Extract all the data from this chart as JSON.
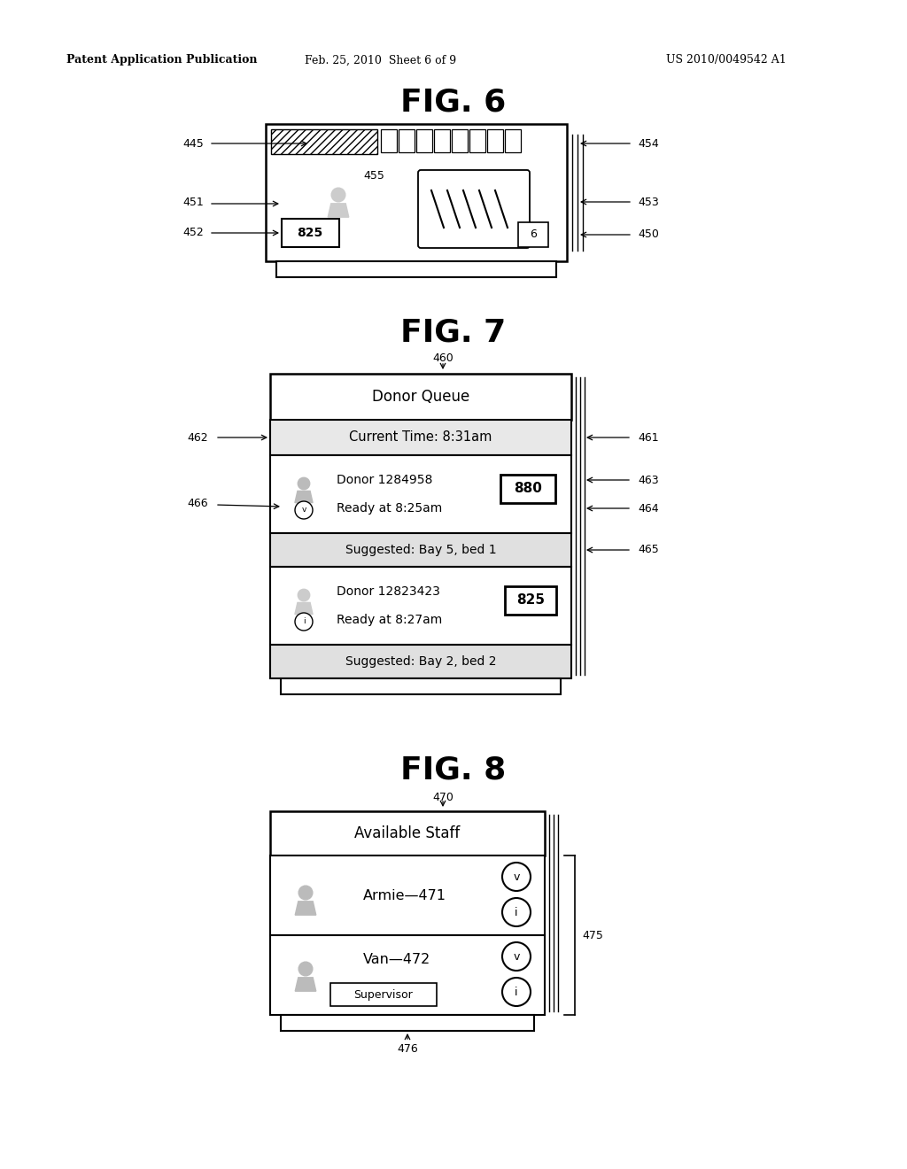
{
  "bg_color": "#ffffff",
  "header_left": "Patent Application Publication",
  "header_mid": "Feb. 25, 2010  Sheet 6 of 9",
  "header_right": "US 2010/0049542 A1",
  "fig6_title": "FIG. 6",
  "fig7_title": "FIG. 7",
  "fig8_title": "FIG. 8",
  "fig7": {
    "text_donor_queue": "Donor Queue",
    "text_current_time": "Current Time: 8:31am",
    "text_donor1": "Donor 1284958",
    "text_ready1": "Ready at 8:25am",
    "text_suggested1": "Suggested: Bay 5, bed 1",
    "text_donor2": "Donor 12823423",
    "text_ready2": "Ready at 8:27am",
    "text_suggested2": "Suggested: Bay 2, bed 2",
    "badge_880": "880",
    "badge_825": "825"
  },
  "fig8": {
    "text_available_staff": "Available Staff",
    "text_armie": "Armie—471",
    "text_van": "Van—472",
    "text_supervisor": "Supervisor",
    "circle_v": "v",
    "circle_i": "i"
  }
}
